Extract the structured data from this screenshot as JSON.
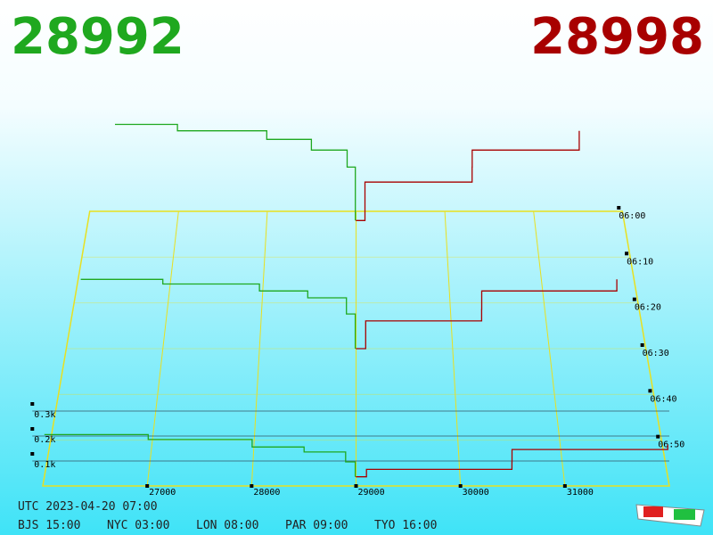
{
  "chart_data": {
    "type": "depth3d",
    "bid_label": "28992",
    "ask_label": "28998",
    "bid_color": "#1fa81f",
    "ask_color": "#a80000",
    "xlim": [
      26000,
      32000
    ],
    "xticks": [
      27000,
      28000,
      29000,
      30000,
      31000
    ],
    "ylim": [
      0,
      500
    ],
    "yticks": [
      {
        "value": 100,
        "label": "0.1k"
      },
      {
        "value": 200,
        "label": "0.2k"
      },
      {
        "value": 300,
        "label": "0.3k"
      }
    ],
    "zlim": [
      0,
      60
    ],
    "zticks": [
      {
        "value": 0,
        "label": "06:00"
      },
      {
        "value": 10,
        "label": "06:10"
      },
      {
        "value": 20,
        "label": "06:20"
      },
      {
        "value": 30,
        "label": "06:30"
      },
      {
        "value": 40,
        "label": "06:40"
      },
      {
        "value": 50,
        "label": "06:50"
      }
    ],
    "layers": [
      {
        "z": 2,
        "bids": {
          "x": [
            26300,
            27000,
            28000,
            28500,
            28900,
            28992
          ],
          "values": [
            450,
            420,
            380,
            330,
            250,
            0
          ]
        },
        "asks": {
          "x": [
            28998,
            29100,
            30300,
            30301,
            31500
          ],
          "values": [
            0,
            180,
            250,
            330,
            420
          ]
        }
      },
      {
        "z": 30,
        "bids": {
          "x": [
            26150,
            27000,
            28000,
            28500,
            28900,
            28992
          ],
          "values": [
            300,
            280,
            250,
            220,
            150,
            0
          ]
        },
        "asks": {
          "x": [
            28998,
            29100,
            30300,
            30301,
            31700
          ],
          "values": [
            0,
            120,
            170,
            250,
            300
          ]
        }
      },
      {
        "z": 58,
        "bids": {
          "x": [
            26000,
            27000,
            28000,
            28500,
            28900,
            28992
          ],
          "values": [
            170,
            150,
            120,
            100,
            60,
            0
          ]
        },
        "asks": {
          "x": [
            28998,
            29100,
            30500,
            30501,
            32000
          ],
          "values": [
            0,
            30,
            60,
            110,
            130
          ]
        }
      }
    ]
  },
  "clock": {
    "utc": "UTC 2023-04-20 07:00",
    "cities": [
      "BJS 15:00",
      "NYC 03:00",
      "LON 08:00",
      "PAR 09:00",
      "TYO 16:00"
    ]
  }
}
